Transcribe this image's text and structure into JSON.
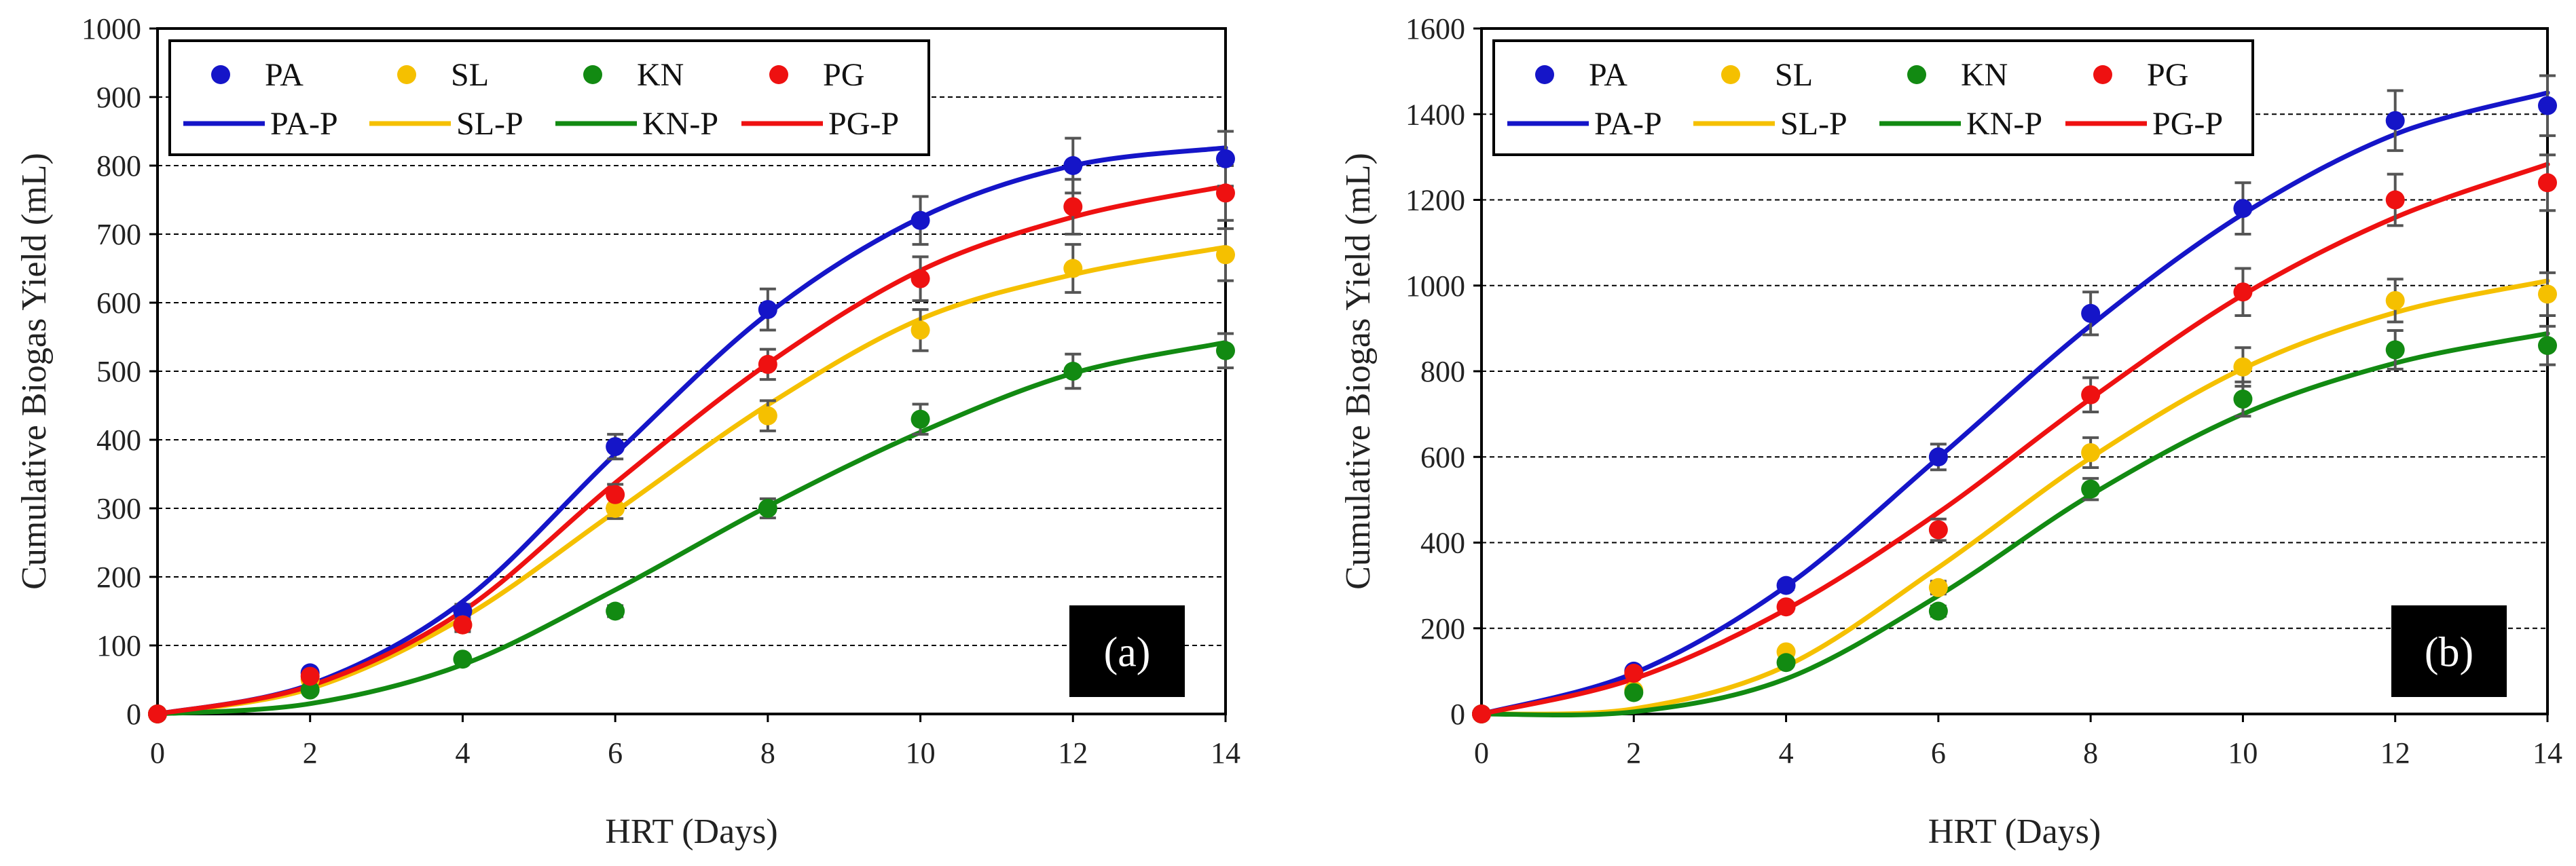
{
  "chart_data": [
    {
      "type": "scatter",
      "panel_label": "(a)",
      "xlabel": "HRT (Days)",
      "ylabel": "Cumulative Biogas Yield (mL)",
      "xlim": [
        0,
        14
      ],
      "ylim": [
        0,
        1000
      ],
      "xticks": [
        0,
        2,
        4,
        6,
        8,
        10,
        12,
        14
      ],
      "yticks": [
        0,
        100,
        200,
        300,
        400,
        500,
        600,
        700,
        800,
        900,
        1000
      ],
      "grid": "horizontal-dashed",
      "legend_position": "top-left",
      "x": [
        0,
        2,
        4,
        6,
        8,
        10,
        12,
        14
      ],
      "series": [
        {
          "name": "PA",
          "color": "#1515c8",
          "values": [
            0,
            60,
            150,
            390,
            590,
            720,
            800,
            810
          ],
          "errors": [
            0,
            5,
            10,
            18,
            30,
            35,
            40,
            40
          ]
        },
        {
          "name": "SL",
          "color": "#f5c000",
          "values": [
            0,
            50,
            130,
            300,
            435,
            560,
            650,
            670
          ],
          "errors": [
            0,
            5,
            10,
            15,
            22,
            30,
            35,
            38
          ]
        },
        {
          "name": "KN",
          "color": "#128a12",
          "values": [
            0,
            35,
            80,
            150,
            300,
            430,
            500,
            530
          ],
          "errors": [
            0,
            3,
            5,
            8,
            14,
            22,
            25,
            25
          ]
        },
        {
          "name": "PG",
          "color": "#ee1111",
          "values": [
            0,
            55,
            130,
            320,
            510,
            635,
            740,
            760
          ],
          "errors": [
            0,
            5,
            8,
            15,
            22,
            32,
            40,
            40
          ]
        }
      ],
      "fits": [
        {
          "name": "PA-P",
          "color": "#1515c8",
          "values": [
            0,
            43,
            164,
            379,
            584,
            724,
            800,
            826
          ]
        },
        {
          "name": "SL-P",
          "color": "#f5c000",
          "values": [
            0,
            37,
            140,
            295,
            451,
            576,
            641,
            681
          ]
        },
        {
          "name": "KN-P",
          "color": "#128a12",
          "values": [
            0,
            15,
            72,
            181,
            303,
            411,
            497,
            542
          ]
        },
        {
          "name": "PG-P",
          "color": "#ee1111",
          "values": [
            0,
            41,
            150,
            337,
            511,
            647,
            725,
            770
          ]
        }
      ]
    },
    {
      "type": "scatter",
      "panel_label": "(b)",
      "xlabel": "HRT (Days)",
      "ylabel": "Cumulative Biogas Yield (mL)",
      "xlim": [
        0,
        14
      ],
      "ylim": [
        0,
        1600
      ],
      "xticks": [
        0,
        2,
        4,
        6,
        8,
        10,
        12,
        14
      ],
      "yticks": [
        0,
        200,
        400,
        600,
        800,
        1000,
        1200,
        1400,
        1600
      ],
      "grid": "horizontal-dashed",
      "legend_position": "top-left",
      "x": [
        0,
        2,
        4,
        6,
        8,
        10,
        12,
        14
      ],
      "series": [
        {
          "name": "PA",
          "color": "#1515c8",
          "values": [
            0,
            100,
            300,
            600,
            935,
            1180,
            1385,
            1420
          ],
          "errors": [
            0,
            5,
            10,
            30,
            50,
            60,
            70,
            70
          ]
        },
        {
          "name": "SL",
          "color": "#f5c000",
          "values": [
            0,
            55,
            145,
            295,
            610,
            810,
            965,
            980
          ],
          "errors": [
            0,
            5,
            8,
            15,
            35,
            45,
            50,
            50
          ]
        },
        {
          "name": "KN",
          "color": "#128a12",
          "values": [
            0,
            50,
            120,
            240,
            525,
            735,
            850,
            860
          ],
          "errors": [
            0,
            5,
            8,
            12,
            25,
            40,
            45,
            45
          ]
        },
        {
          "name": "PG",
          "color": "#ee1111",
          "values": [
            0,
            95,
            250,
            430,
            745,
            985,
            1200,
            1240
          ],
          "errors": [
            0,
            5,
            10,
            25,
            40,
            55,
            60,
            65
          ]
        }
      ],
      "fits": [
        {
          "name": "PA-P",
          "color": "#1515c8",
          "values": [
            0,
            95,
            298,
            598,
            907,
            1167,
            1353,
            1450
          ]
        },
        {
          "name": "SL-P",
          "color": "#f5c000",
          "values": [
            0,
            12,
            112,
            342,
            598,
            806,
            937,
            1011
          ]
        },
        {
          "name": "KN-P",
          "color": "#128a12",
          "values": [
            0,
            5,
            82,
            276,
            511,
            700,
            819,
            888
          ]
        },
        {
          "name": "PG-P",
          "color": "#ee1111",
          "values": [
            0,
            82,
            244,
            470,
            736,
            978,
            1159,
            1283
          ]
        }
      ]
    }
  ]
}
